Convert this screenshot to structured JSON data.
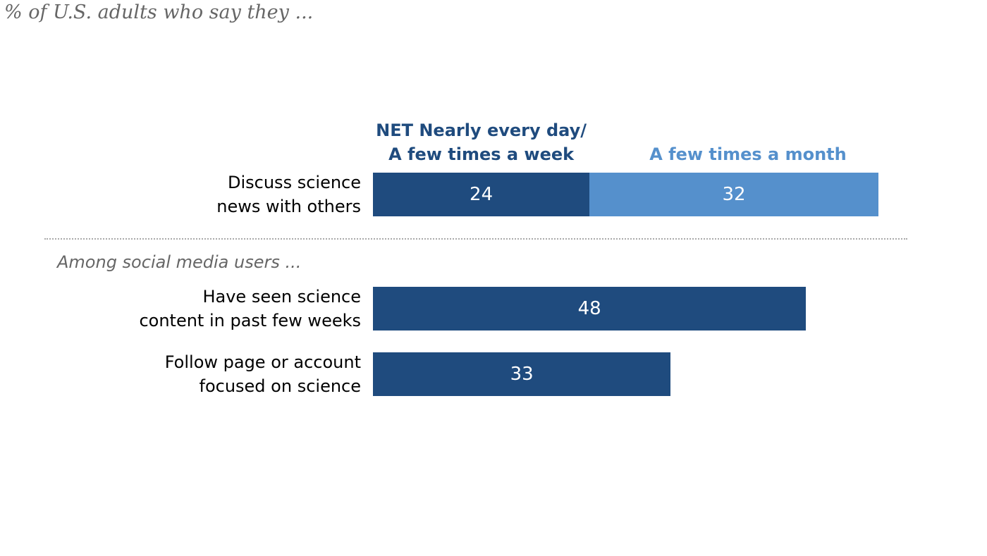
{
  "chart_data": {
    "type": "stacked-bar",
    "orientation": "horizontal",
    "subtitle": "% of U.S. adults who say they ...",
    "note": "Among social media users ...",
    "categories": [
      "Discuss science\nnews with others",
      "Have seen science\ncontent in past few weeks",
      "Follow page or account\nfocused on science"
    ],
    "series": [
      {
        "name": "NET Nearly every day/\nA few times a week",
        "color": "#1f4b7e",
        "values": [
          24,
          48,
          33
        ]
      },
      {
        "name": "A few times a month",
        "color": "#5590cc",
        "values": [
          32,
          null,
          null
        ]
      }
    ]
  }
}
